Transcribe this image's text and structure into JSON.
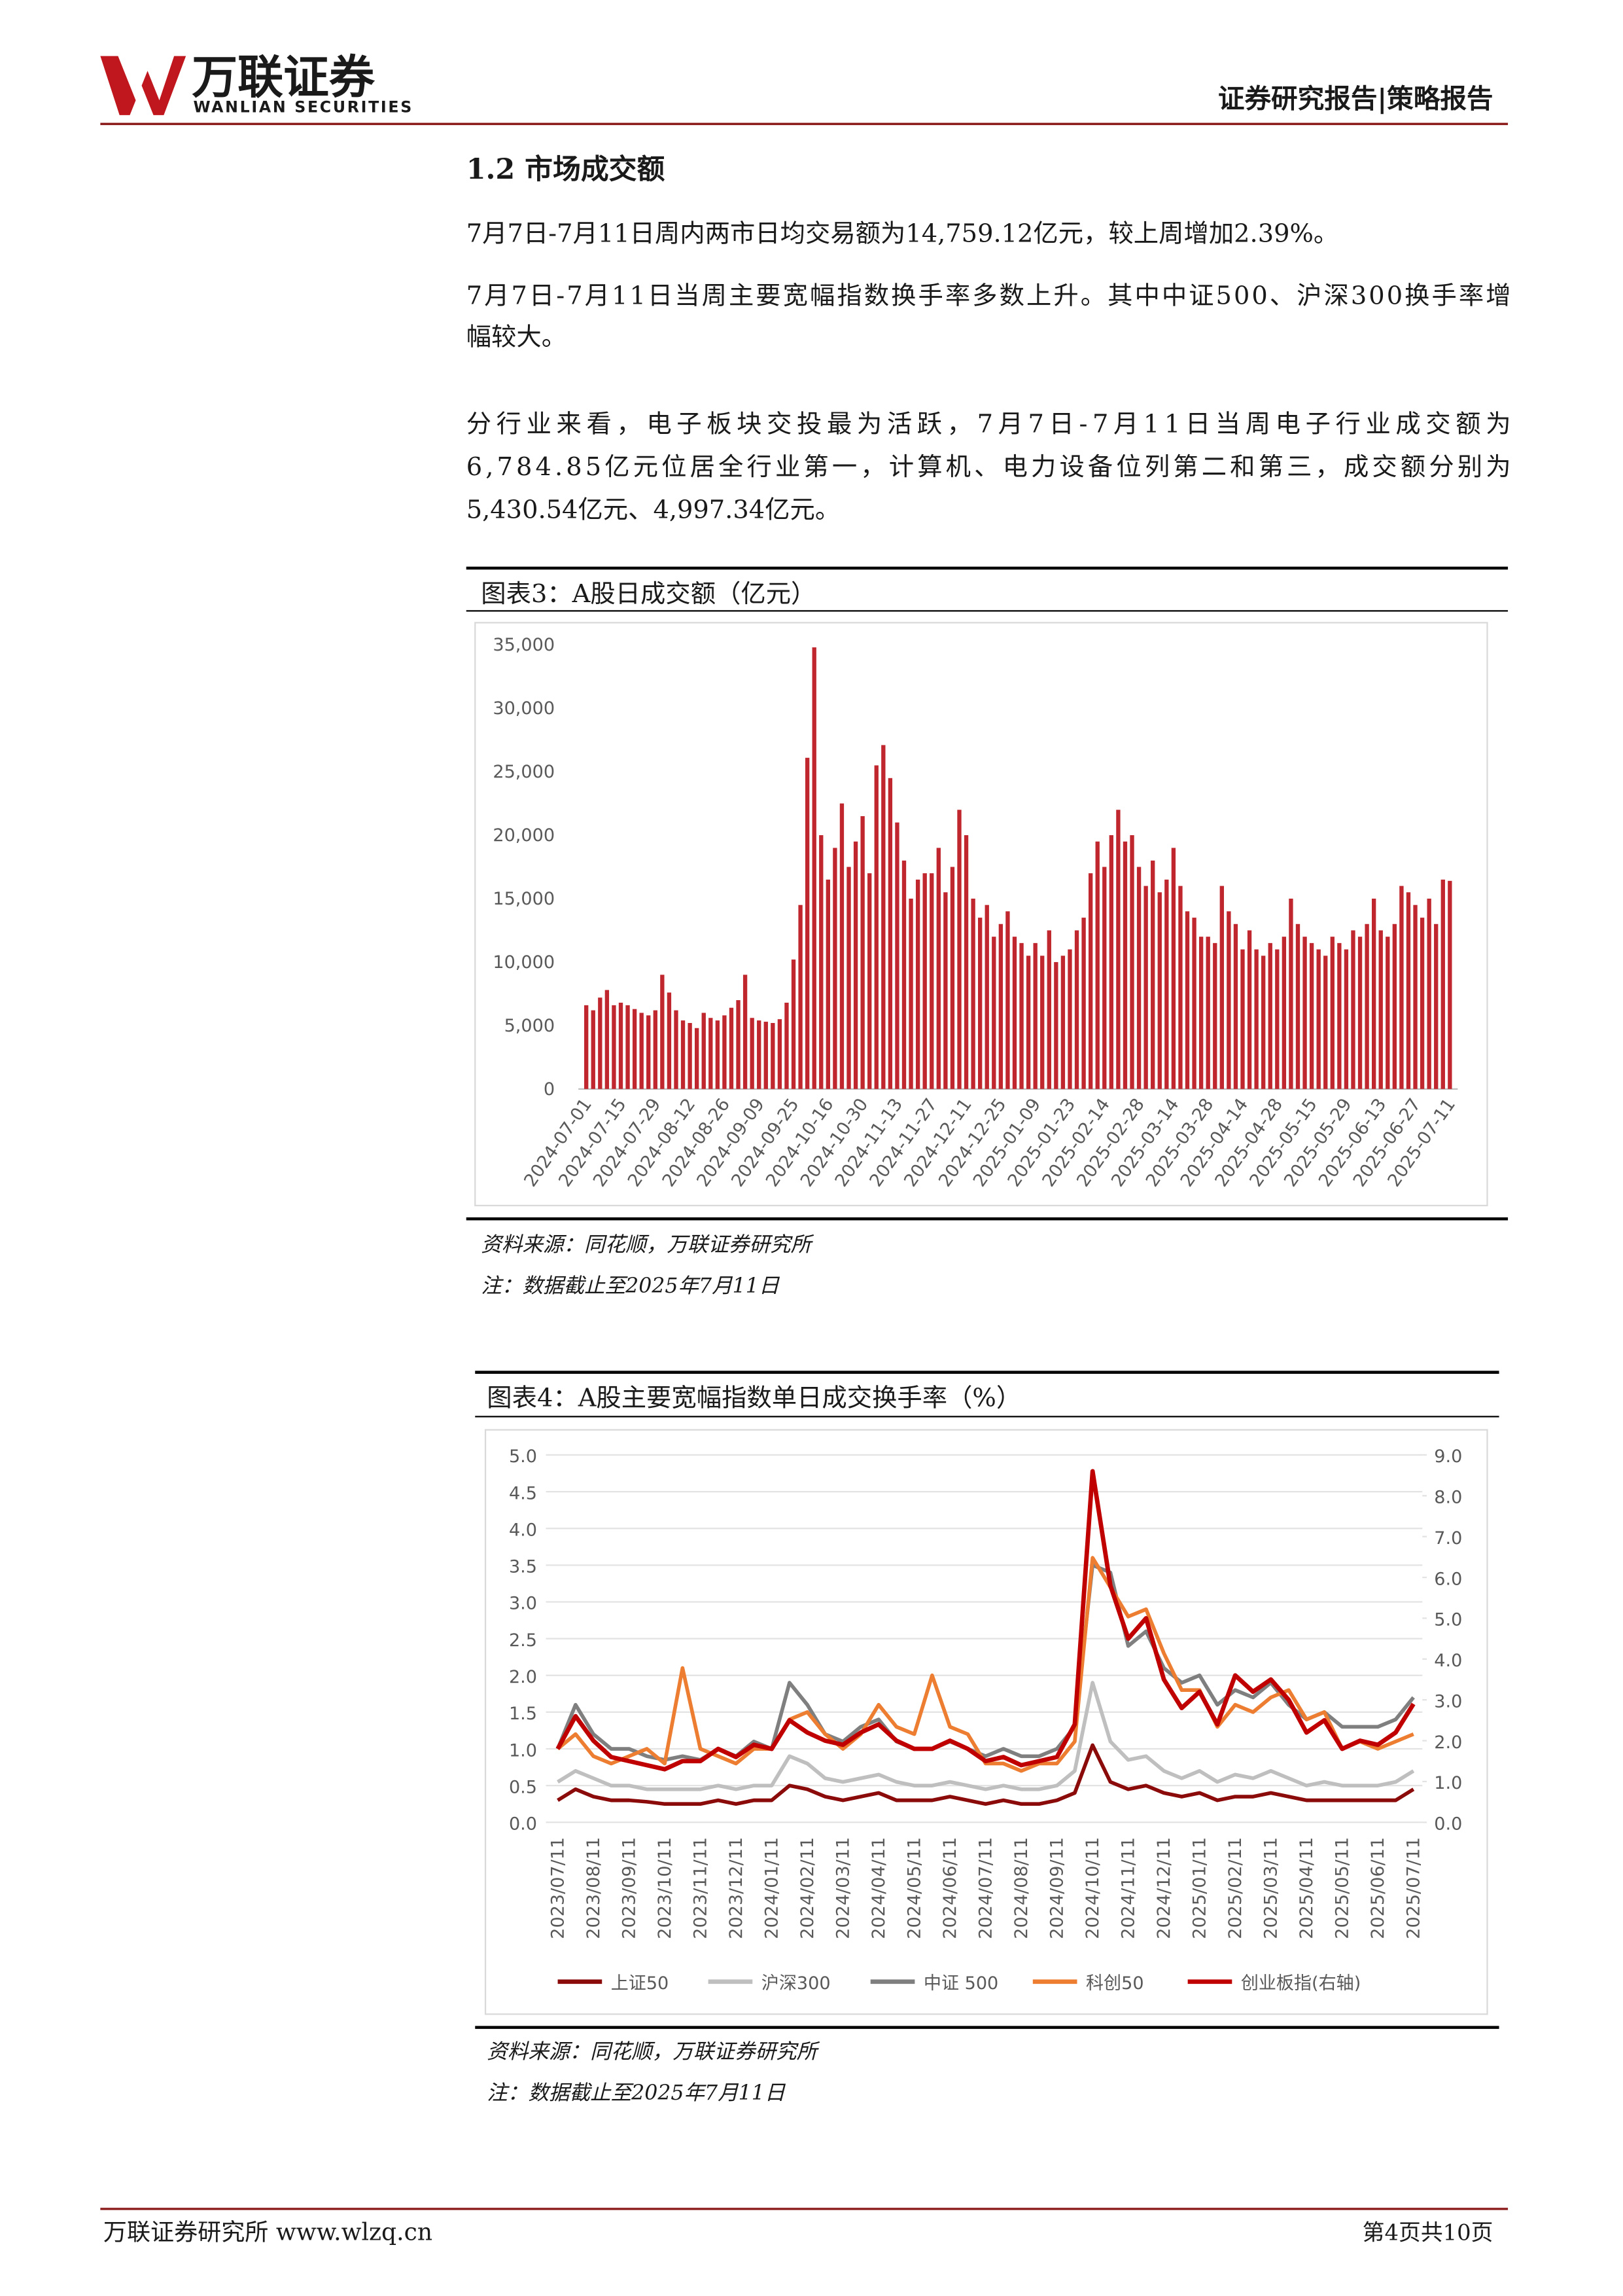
{
  "header": {
    "logo_cn": "万联证券",
    "logo_en": "WANLIAN SECURITIES",
    "right": "证券研究报告|策略报告"
  },
  "section_title": "1.2 市场成交额",
  "paragraphs": [
    [
      "7月7日-7月11日周内两市日均交易额为14,759.12亿元，较上周增加2.39%。"
    ],
    [
      "7月7日-7月11日当周主要宽幅指数换手率多数上升。其中中证500、沪深300换手率增",
      "幅较大。"
    ],
    [
      "分行业来看，电子板块交投最为活跃，7月7日-7月11日当周电子行业成交额为",
      "6,784.85亿元位居全行业第一，计算机、电力设备位列第二和第三，成交额分别为",
      "5,430.54亿元、4,997.34亿元。"
    ]
  ],
  "figures": [
    {
      "caption": "图表3：A股日成交额（亿元）",
      "source": "资料来源：同花顺，万联证券研究所",
      "note": "注：数据截止至2025年7月11日"
    },
    {
      "caption": "图表4：A股主要宽幅指数单日成交换手率（%）",
      "source": "资料来源：同花顺，万联证券研究所",
      "note": "注：数据截止至2025年7月11日"
    }
  ],
  "chart_data": [
    {
      "type": "bar",
      "color": "#c0262d",
      "categories": [
        "2024-07-01",
        null,
        null,
        null,
        null,
        "2024-07-15",
        null,
        null,
        null,
        null,
        "2024-07-29",
        null,
        null,
        null,
        null,
        "2024-08-12",
        null,
        null,
        null,
        null,
        "2024-08-26",
        null,
        null,
        null,
        null,
        "2024-09-09",
        null,
        null,
        null,
        null,
        "2024-09-25",
        null,
        null,
        null,
        null,
        "2024-10-16",
        null,
        null,
        null,
        null,
        "2024-10-30",
        null,
        null,
        null,
        null,
        "2024-11-13",
        null,
        null,
        null,
        null,
        "2024-11-27",
        null,
        null,
        null,
        null,
        "2024-12-11",
        null,
        null,
        null,
        null,
        "2024-12-25",
        null,
        null,
        null,
        null,
        "2025-01-09",
        null,
        null,
        null,
        null,
        "2025-01-23",
        null,
        null,
        null,
        null,
        "2025-02-14",
        null,
        null,
        null,
        null,
        "2025-02-28",
        null,
        null,
        null,
        null,
        "2025-03-14",
        null,
        null,
        null,
        null,
        "2025-03-28",
        null,
        null,
        null,
        null,
        "2025-04-14",
        null,
        null,
        null,
        null,
        "2025-04-28",
        null,
        null,
        null,
        null,
        "2025-05-15",
        null,
        null,
        null,
        null,
        "2025-05-29",
        null,
        null,
        null,
        null,
        "2025-06-13",
        null,
        null,
        null,
        null,
        "2025-06-27",
        null,
        null,
        null,
        null,
        "2025-07-11"
      ],
      "values": [
        6600,
        6200,
        7200,
        7800,
        6600,
        6800,
        6600,
        6300,
        6000,
        5800,
        6200,
        9000,
        7600,
        6200,
        5400,
        5200,
        4800,
        6000,
        5600,
        5400,
        5800,
        6400,
        7000,
        9000,
        5600,
        5400,
        5300,
        5200,
        5500,
        6800,
        10200,
        14500,
        26100,
        34800,
        20000,
        16500,
        19000,
        22500,
        17500,
        19500,
        21500,
        17000,
        25500,
        27100,
        24500,
        21000,
        18000,
        15000,
        16500,
        17000,
        17000,
        19000,
        15500,
        17500,
        22000,
        20000,
        15000,
        13500,
        14500,
        12000,
        13000,
        14000,
        12000,
        11500,
        10500,
        11500,
        10500,
        12500,
        10000,
        10500,
        11000,
        12500,
        13500,
        17000,
        19500,
        17500,
        20000,
        22000,
        19500,
        20000,
        17500,
        16000,
        18000,
        15500,
        16500,
        19000,
        16000,
        14000,
        13500,
        12000,
        12000,
        11500,
        16000,
        14000,
        13000,
        11000,
        12500,
        11000,
        10500,
        11500,
        11000,
        12000,
        15000,
        13000,
        12000,
        11500,
        11000,
        10500,
        12000,
        11500,
        11000,
        12500,
        12000,
        13000,
        15000,
        12500,
        12000,
        13000,
        16000,
        15500,
        14500,
        13500,
        15000,
        13000,
        16500,
        16400
      ],
      "ylim": [
        0,
        35000
      ],
      "yticks": [
        0,
        {
          "value": 5000,
          "label": "5,000"
        },
        {
          "value": 10000,
          "label": "10,000"
        },
        {
          "value": 15000,
          "label": "15,000"
        },
        {
          "value": 20000,
          "label": "20,000"
        },
        {
          "value": 25000,
          "label": "25,000"
        },
        {
          "value": 30000,
          "label": "30,000"
        },
        {
          "value": 35000,
          "label": "35,000"
        }
      ],
      "grid": false
    },
    {
      "type": "line",
      "categories": [
        "2023/07/11",
        null,
        "2023/08/11",
        null,
        "2023/09/11",
        null,
        "2023/10/11",
        null,
        "2023/11/11",
        null,
        "2023/12/11",
        null,
        "2024/01/11",
        null,
        "2024/02/11",
        null,
        "2024/03/11",
        null,
        "2024/04/11",
        null,
        "2024/05/11",
        null,
        "2024/06/11",
        null,
        "2024/07/11",
        null,
        "2024/08/11",
        null,
        "2024/09/11",
        null,
        "2024/10/11",
        null,
        "2024/11/11",
        null,
        "2024/12/11",
        null,
        "2025/01/11",
        null,
        "2025/02/11",
        null,
        "2025/03/11",
        null,
        "2025/04/11",
        null,
        "2025/05/11",
        null,
        "2025/06/11",
        null,
        "2025/07/11"
      ],
      "series": [
        {
          "name": "上证50",
          "color": "#8b0a0a",
          "values": [
            0.3,
            0.45,
            0.35,
            0.3,
            0.3,
            0.28,
            0.25,
            0.25,
            0.25,
            0.3,
            0.25,
            0.3,
            0.3,
            0.5,
            0.45,
            0.35,
            0.3,
            0.35,
            0.4,
            0.3,
            0.3,
            0.3,
            0.35,
            0.3,
            0.25,
            0.3,
            0.25,
            0.25,
            0.3,
            0.4,
            1.05,
            0.55,
            0.45,
            0.5,
            0.4,
            0.35,
            0.4,
            0.3,
            0.35,
            0.35,
            0.4,
            0.35,
            0.3,
            0.3,
            0.3,
            0.3,
            0.3,
            0.3,
            0.45
          ]
        },
        {
          "name": "沪深300",
          "color": "#bfbfbf",
          "values": [
            0.55,
            0.7,
            0.6,
            0.5,
            0.5,
            0.45,
            0.45,
            0.45,
            0.45,
            0.5,
            0.45,
            0.5,
            0.5,
            0.9,
            0.8,
            0.6,
            0.55,
            0.6,
            0.65,
            0.55,
            0.5,
            0.5,
            0.55,
            0.5,
            0.45,
            0.5,
            0.45,
            0.45,
            0.5,
            0.7,
            1.9,
            1.1,
            0.85,
            0.9,
            0.7,
            0.6,
            0.7,
            0.55,
            0.65,
            0.6,
            0.7,
            0.6,
            0.5,
            0.55,
            0.5,
            0.5,
            0.5,
            0.55,
            0.7
          ]
        },
        {
          "name": "中证 500",
          "color": "#7f7f7f",
          "values": [
            1.0,
            1.6,
            1.2,
            1.0,
            1.0,
            0.9,
            0.85,
            0.9,
            0.85,
            1.0,
            0.9,
            1.1,
            1.0,
            1.9,
            1.6,
            1.2,
            1.1,
            1.3,
            1.4,
            1.1,
            1.0,
            1.0,
            1.1,
            1.0,
            0.9,
            1.0,
            0.9,
            0.9,
            1.0,
            1.3,
            3.5,
            3.4,
            2.4,
            2.6,
            2.1,
            1.9,
            2.0,
            1.6,
            1.8,
            1.7,
            1.9,
            1.6,
            1.4,
            1.5,
            1.3,
            1.3,
            1.3,
            1.4,
            1.7
          ]
        },
        {
          "name": "科创50",
          "color": "#ed7d31",
          "values": [
            1.0,
            1.2,
            0.9,
            0.8,
            0.9,
            1.0,
            0.8,
            2.1,
            1.0,
            0.9,
            0.8,
            1.0,
            1.0,
            1.4,
            1.5,
            1.2,
            1.0,
            1.2,
            1.6,
            1.3,
            1.2,
            2.0,
            1.3,
            1.2,
            0.8,
            0.8,
            0.7,
            0.8,
            0.8,
            1.1,
            3.6,
            3.2,
            2.8,
            2.9,
            2.3,
            1.8,
            1.8,
            1.3,
            1.6,
            1.5,
            1.7,
            1.8,
            1.4,
            1.5,
            1.0,
            1.1,
            1.0,
            1.1,
            1.2
          ]
        },
        {
          "name": "创业板指(右轴)",
          "color": "#c00000",
          "axis": "y2",
          "values": [
            1.8,
            2.6,
            2.0,
            1.6,
            1.5,
            1.4,
            1.3,
            1.5,
            1.5,
            1.8,
            1.6,
            1.9,
            1.8,
            2.5,
            2.2,
            2.0,
            1.9,
            2.2,
            2.4,
            2.0,
            1.8,
            1.8,
            2.0,
            1.8,
            1.5,
            1.6,
            1.4,
            1.5,
            1.6,
            2.4,
            8.6,
            5.8,
            4.5,
            5.0,
            3.5,
            2.8,
            3.2,
            2.4,
            3.6,
            3.2,
            3.5,
            3.0,
            2.2,
            2.5,
            1.8,
            2.0,
            1.9,
            2.2,
            2.9
          ]
        }
      ],
      "ylim": [
        0,
        5
      ],
      "yticks": [
        {
          "value": 0,
          "label": "0.0"
        },
        {
          "value": 0.5,
          "label": "0.5"
        },
        {
          "value": 1,
          "label": "1.0"
        },
        {
          "value": 1.5,
          "label": "1.5"
        },
        {
          "value": 2,
          "label": "2.0"
        },
        {
          "value": 2.5,
          "label": "2.5"
        },
        {
          "value": 3,
          "label": "3.0"
        },
        {
          "value": 3.5,
          "label": "3.5"
        },
        {
          "value": 4,
          "label": "4.0"
        },
        {
          "value": 4.5,
          "label": "4.5"
        },
        {
          "value": 5,
          "label": "5.0"
        }
      ],
      "y2lim": [
        0,
        9
      ],
      "y2ticks": [
        {
          "value": 0,
          "label": "0.0"
        },
        {
          "value": 1,
          "label": "1.0"
        },
        {
          "value": 2,
          "label": "2.0"
        },
        {
          "value": 3,
          "label": "3.0"
        },
        {
          "value": 4,
          "label": "4.0"
        },
        {
          "value": 5,
          "label": "5.0"
        },
        {
          "value": 6,
          "label": "6.0"
        },
        {
          "value": 7,
          "label": "7.0"
        },
        {
          "value": 8,
          "label": "8.0"
        },
        {
          "value": 9,
          "label": "9.0"
        }
      ],
      "grid": true,
      "legend": "bottom"
    }
  ],
  "footer": {
    "left": "万联证券研究所 www.wlzq.cn",
    "right": "第4页共10页"
  }
}
